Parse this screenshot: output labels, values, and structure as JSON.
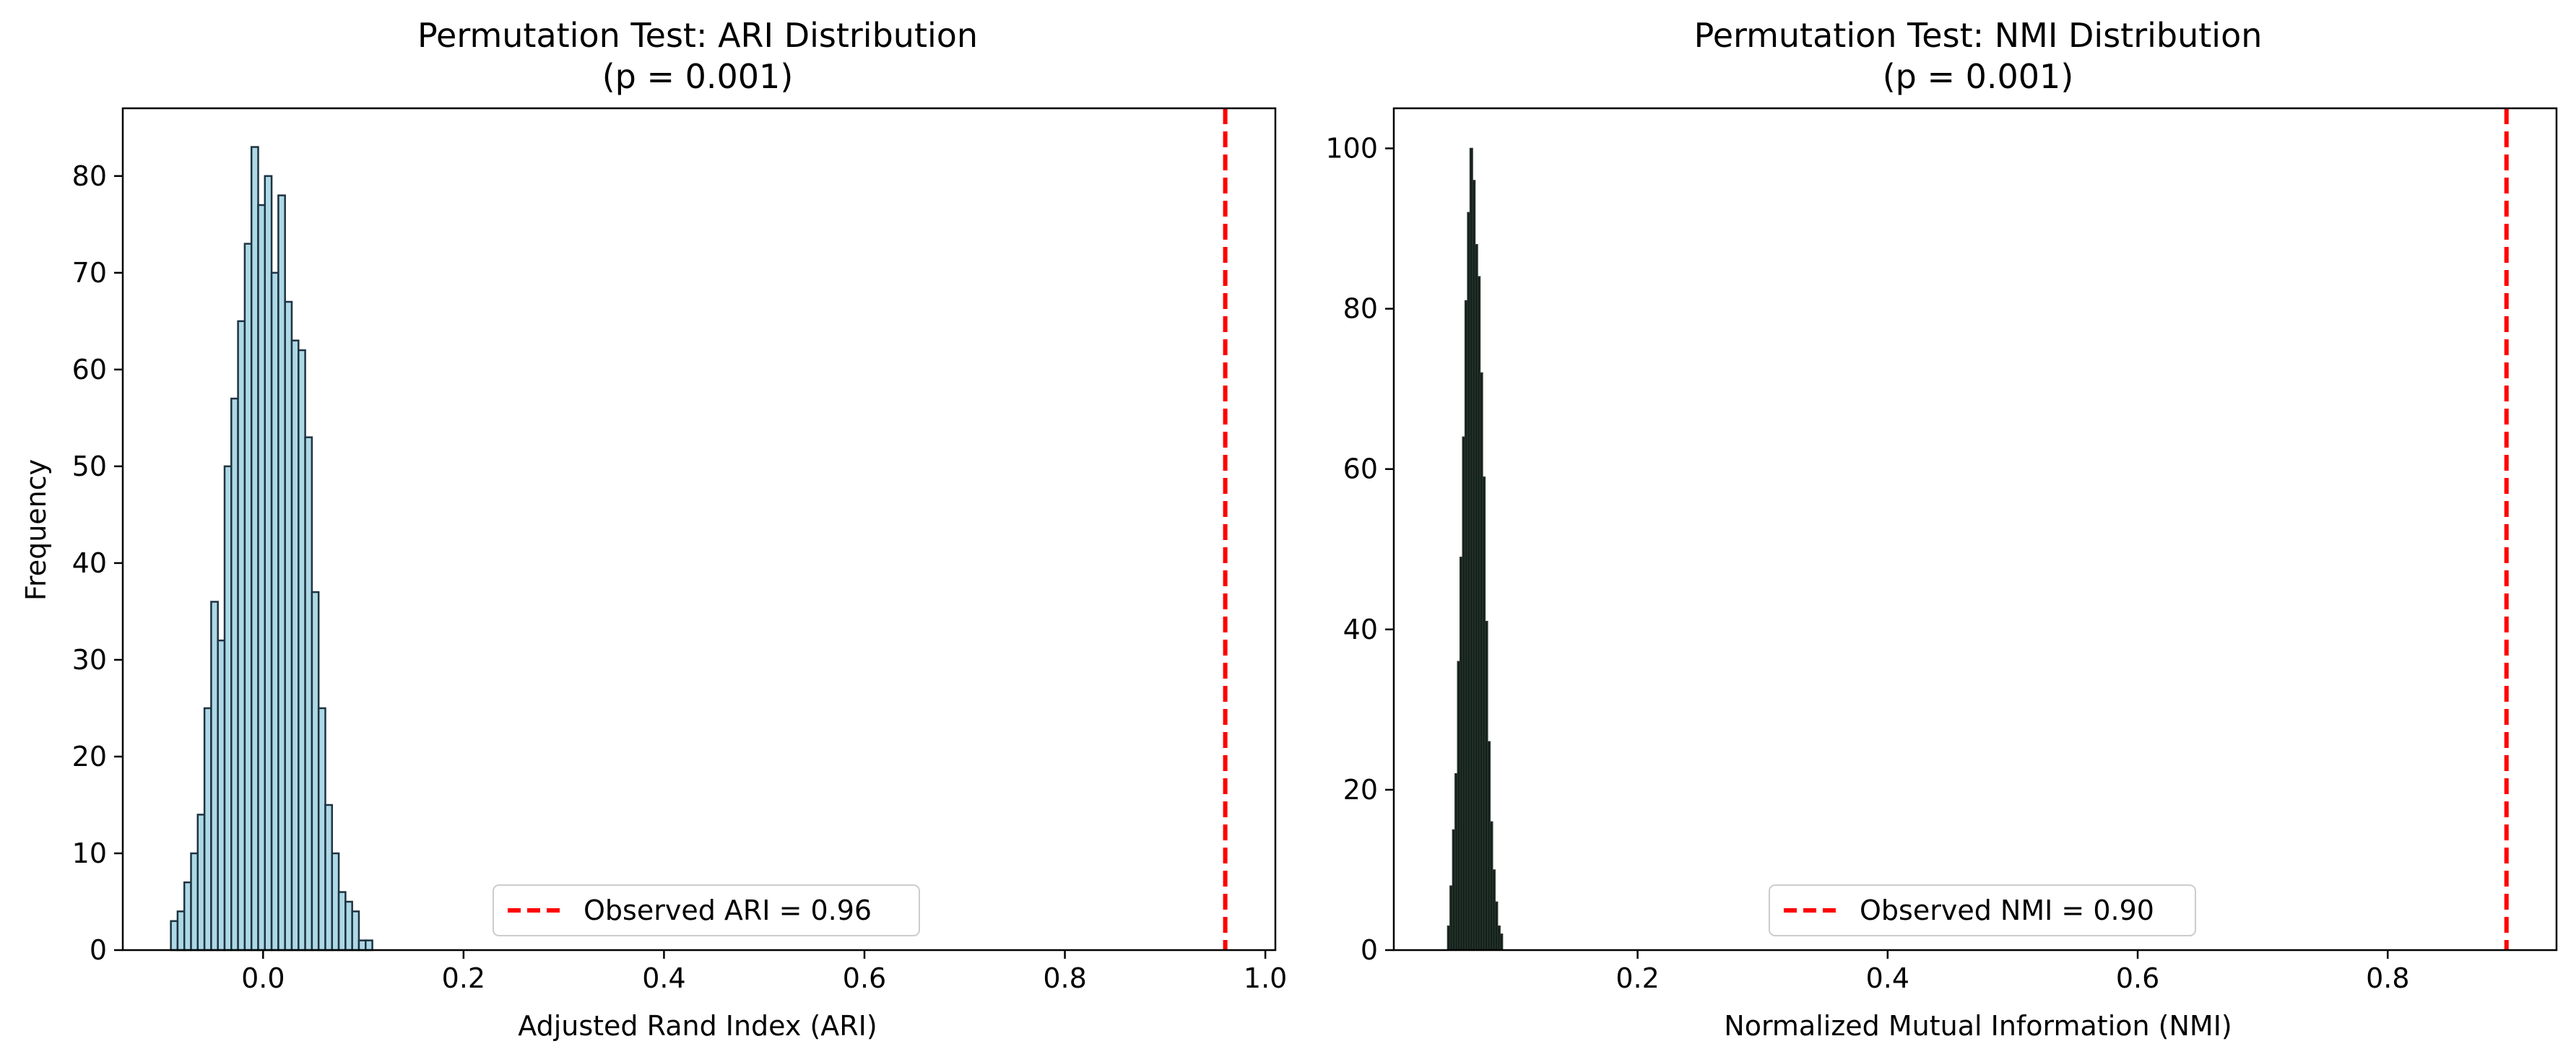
{
  "chart_data": [
    {
      "type": "bar",
      "title": "Permutation Test: ARI Distribution",
      "subtitle": "(p = 0.001)",
      "xlabel": "Adjusted Rand Index (ARI)",
      "ylabel": "Frequency",
      "xlim": [
        -0.14,
        1.01
      ],
      "ylim": [
        0,
        87
      ],
      "xticks": [
        0.0,
        0.2,
        0.4,
        0.6,
        0.8,
        1.0
      ],
      "xtick_labels": [
        "0.0",
        "0.2",
        "0.4",
        "0.6",
        "0.8",
        "1.0"
      ],
      "yticks": [
        0,
        10,
        20,
        30,
        40,
        50,
        60,
        70,
        80
      ],
      "ytick_labels": [
        "0",
        "10",
        "20",
        "30",
        "40",
        "50",
        "60",
        "70",
        "80"
      ],
      "bin_start": -0.092,
      "bin_width": 0.0067,
      "values": [
        3,
        4,
        7,
        10,
        14,
        25,
        36,
        32,
        50,
        57,
        65,
        73,
        83,
        77,
        80,
        70,
        78,
        67,
        63,
        62,
        53,
        37,
        25,
        15,
        10,
        6,
        5,
        4,
        1,
        1
      ],
      "bar_fill": "#add8e6",
      "bar_edge": "#1f3340",
      "observed_line": {
        "x": 0.96,
        "color": "#ff0000",
        "label": "Observed ARI = 0.96"
      },
      "legend_position": "lower center",
      "grid": false
    },
    {
      "type": "bar",
      "title": "Permutation Test: NMI Distribution",
      "subtitle": "(p = 0.001)",
      "xlabel": "Normalized Mutual Information (NMI)",
      "ylabel": "",
      "xlim": [
        0.005,
        0.935
      ],
      "ylim": [
        0,
        105
      ],
      "xticks": [
        0.2,
        0.4,
        0.6,
        0.8
      ],
      "xtick_labels": [
        "0.2",
        "0.4",
        "0.6",
        "0.8"
      ],
      "yticks": [
        0,
        20,
        40,
        60,
        80,
        100
      ],
      "ytick_labels": [
        "0",
        "20",
        "40",
        "60",
        "80",
        "100"
      ],
      "bin_start": 0.048,
      "bin_width": 0.002,
      "values": [
        3,
        8,
        15,
        22,
        36,
        49,
        64,
        81,
        92,
        100,
        96,
        88,
        84,
        72,
        59,
        41,
        26,
        16,
        10,
        6,
        3,
        2
      ],
      "bar_fill": "#0f1f18",
      "bar_edge": "#2a332e",
      "observed_line": {
        "x": 0.895,
        "color": "#ff0000",
        "label": "Observed NMI = 0.90"
      },
      "legend_position": "lower center",
      "grid": false
    }
  ]
}
